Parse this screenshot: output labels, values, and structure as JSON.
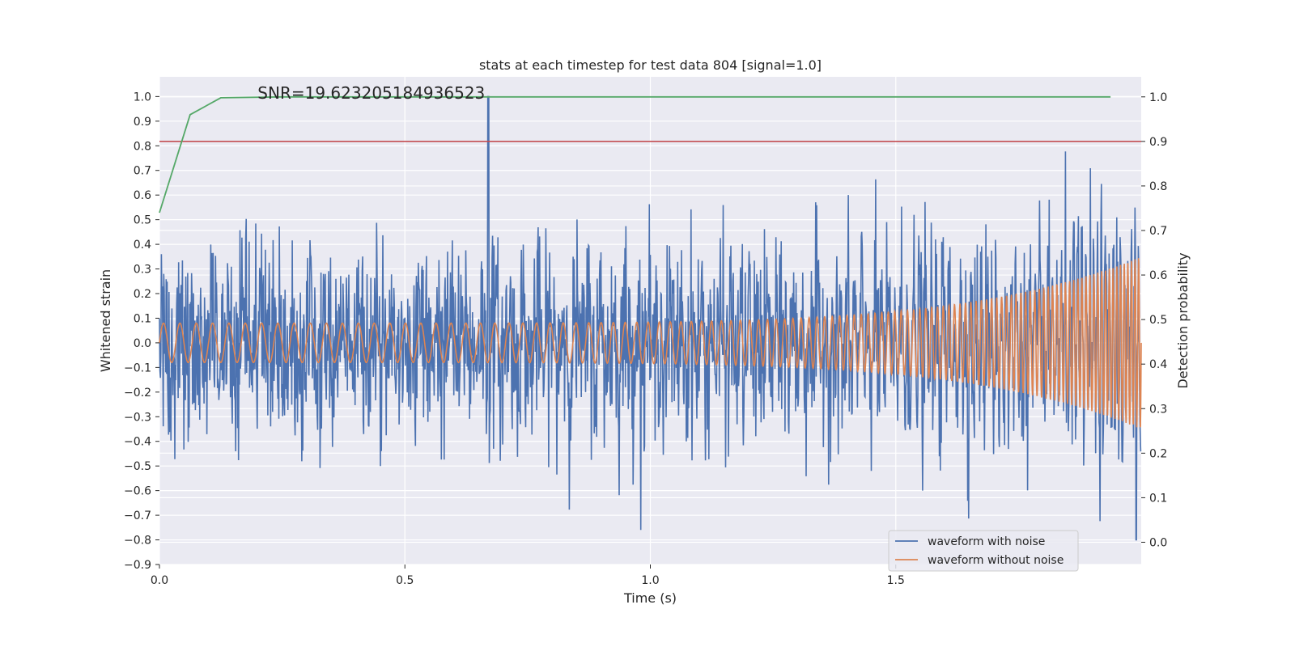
{
  "chart_data": {
    "type": "line",
    "title": "stats at each timestep for test data 804 [signal=1.0]",
    "annotation": "SNR=19.623205184936523",
    "xlabel": "Time (s)",
    "ylabel_left": "Whitened strain",
    "ylabel_right": "Detection probability",
    "xlim": [
      0,
      2.0
    ],
    "ylim_left": [
      -0.9,
      1.08
    ],
    "ylim_right": [
      -0.05,
      1.045
    ],
    "x_ticks": [
      "0.0",
      "0.5",
      "1.0",
      "1.5"
    ],
    "x_tick_values": [
      0,
      0.5,
      1.0,
      1.5
    ],
    "y_left_ticks": [
      "1.0",
      "0.9",
      "0.8",
      "0.7",
      "0.6",
      "0.5",
      "0.4",
      "0.3",
      "0.2",
      "0.1",
      "0.0",
      "−0.1",
      "−0.2",
      "−0.3",
      "−0.4",
      "−0.5",
      "−0.6",
      "−0.7",
      "−0.8",
      "−0.9"
    ],
    "y_left_tick_values": [
      1.0,
      0.9,
      0.8,
      0.7,
      0.6,
      0.5,
      0.4,
      0.3,
      0.2,
      0.1,
      0.0,
      -0.1,
      -0.2,
      -0.3,
      -0.4,
      -0.5,
      -0.6,
      -0.7,
      -0.8,
      -0.9
    ],
    "y_right_ticks": [
      "1.0",
      "0.9",
      "0.8",
      "0.7",
      "0.6",
      "0.5",
      "0.4",
      "0.3",
      "0.2",
      "0.1",
      "0.0"
    ],
    "y_right_tick_values": [
      1.0,
      0.9,
      0.8,
      0.7,
      0.6,
      0.5,
      0.4,
      0.3,
      0.2,
      0.1,
      0.0
    ],
    "grid": true,
    "legend_placement": "lower-right",
    "colors": {
      "noisy": "#4c72b0",
      "clean": "#dd8452",
      "probability": "#55a868",
      "threshold": "#c44e52",
      "plot_bg": "#eaeaf2",
      "grid": "#ffffff"
    },
    "series": [
      {
        "name": "waveform with noise",
        "axis": "left",
        "description_peaks": {
          "max": 1.0,
          "max_at": 0.67,
          "min": -0.8,
          "min_at": 1.99
        }
      },
      {
        "name": "waveform without noise",
        "axis": "left",
        "amplitude_start": 0.08,
        "amplitude_end": 0.35
      },
      {
        "axis": "right",
        "x": [
          0.0,
          0.0625,
          0.125,
          0.25,
          0.5,
          1.0,
          1.5,
          1.9375
        ],
        "y": [
          0.74,
          0.96,
          0.998,
          1.0,
          1.0,
          1.0,
          1.0,
          1.0
        ]
      },
      {
        "axis": "right",
        "x": [
          0.0,
          2.0
        ],
        "y": [
          0.9,
          0.9
        ]
      }
    ]
  }
}
